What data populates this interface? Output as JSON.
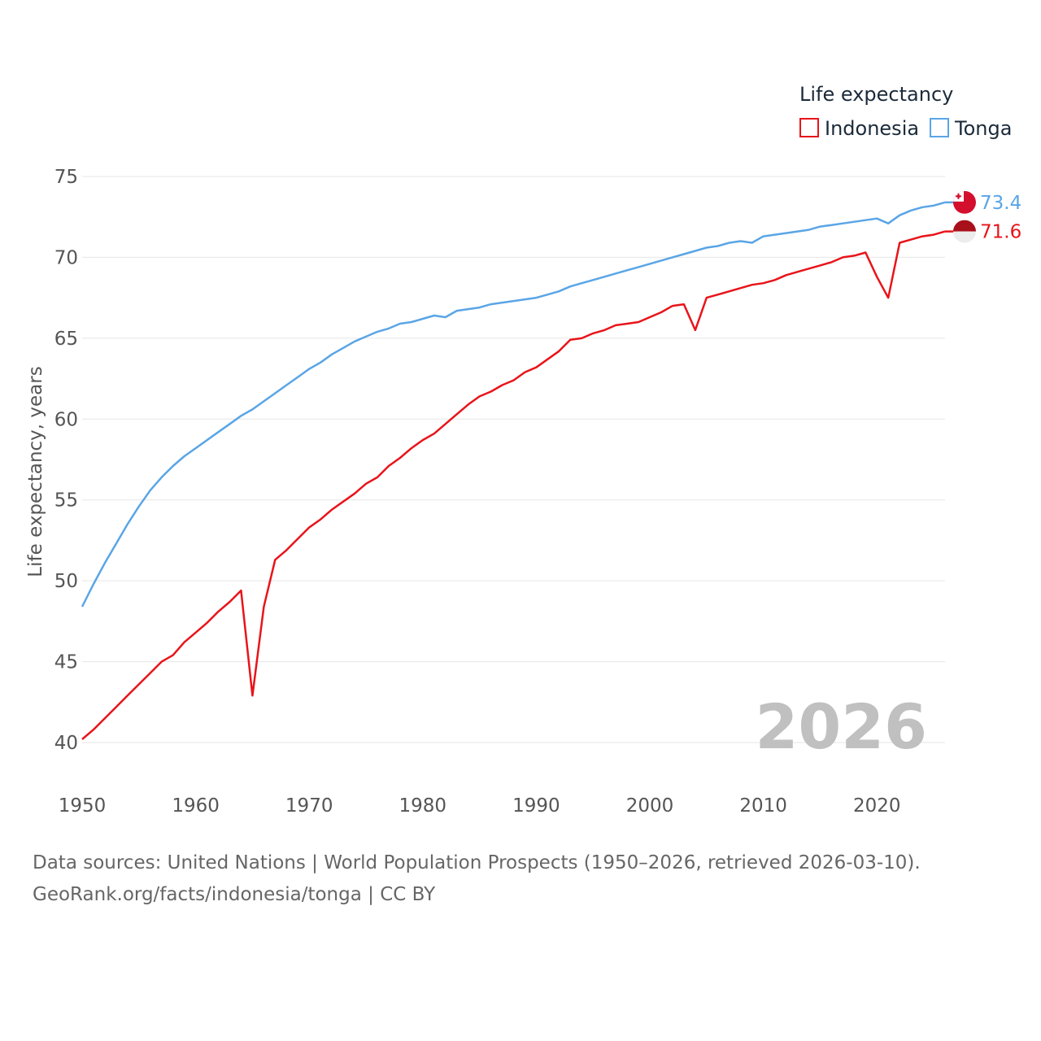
{
  "chart_data": {
    "type": "line",
    "legend_title": "Life expectancy",
    "ylabel": "Life expectancy, years",
    "xlabel": "",
    "xlim": [
      1950,
      2026
    ],
    "ylim": [
      40,
      75
    ],
    "x_ticks": [
      "1950",
      "1960",
      "1970",
      "1980",
      "1990",
      "2000",
      "2010",
      "2020"
    ],
    "y_ticks": [
      "40",
      "45",
      "50",
      "55",
      "60",
      "65",
      "70",
      "75"
    ],
    "year_label": "2026",
    "legend_placement": "top-right",
    "x": [
      1950,
      1951,
      1952,
      1953,
      1954,
      1955,
      1956,
      1957,
      1958,
      1959,
      1960,
      1961,
      1962,
      1963,
      1964,
      1965,
      1966,
      1967,
      1968,
      1969,
      1970,
      1971,
      1972,
      1973,
      1974,
      1975,
      1976,
      1977,
      1978,
      1979,
      1980,
      1981,
      1982,
      1983,
      1984,
      1985,
      1986,
      1987,
      1988,
      1989,
      1990,
      1991,
      1992,
      1993,
      1994,
      1995,
      1996,
      1997,
      1998,
      1999,
      2000,
      2001,
      2002,
      2003,
      2004,
      2005,
      2006,
      2007,
      2008,
      2009,
      2010,
      2011,
      2012,
      2013,
      2014,
      2015,
      2016,
      2017,
      2018,
      2019,
      2020,
      2021,
      2022,
      2023,
      2024,
      2025,
      2026
    ],
    "series": [
      {
        "name": "Indonesia",
        "color": "#e8141a",
        "end_label": "71.6",
        "flag_icon": "indonesia-flag-icon",
        "values": [
          40.2,
          40.8,
          41.5,
          42.2,
          42.9,
          43.6,
          44.3,
          45.0,
          45.4,
          46.2,
          46.8,
          47.4,
          48.1,
          48.7,
          49.4,
          42.9,
          48.4,
          51.3,
          51.9,
          52.6,
          53.3,
          53.8,
          54.4,
          54.9,
          55.4,
          56.0,
          56.4,
          57.1,
          57.6,
          58.2,
          58.7,
          59.1,
          59.7,
          60.3,
          60.9,
          61.4,
          61.7,
          62.1,
          62.4,
          62.9,
          63.2,
          63.7,
          64.2,
          64.9,
          65.0,
          65.3,
          65.5,
          65.8,
          65.9,
          66.0,
          66.3,
          66.6,
          67.0,
          67.1,
          65.5,
          67.5,
          67.7,
          67.9,
          68.1,
          68.3,
          68.4,
          68.6,
          68.9,
          69.1,
          69.3,
          69.5,
          69.7,
          70.0,
          70.1,
          70.3,
          68.8,
          67.5,
          70.9,
          71.1,
          71.3,
          71.4,
          71.6
        ]
      },
      {
        "name": "Tonga",
        "color": "#5aa5e6",
        "end_label": "73.4",
        "flag_icon": "tonga-flag-icon",
        "values": [
          48.4,
          49.8,
          51.1,
          52.3,
          53.5,
          54.6,
          55.6,
          56.4,
          57.1,
          57.7,
          58.2,
          58.7,
          59.2,
          59.7,
          60.2,
          60.6,
          61.1,
          61.6,
          62.1,
          62.6,
          63.1,
          63.5,
          64.0,
          64.4,
          64.8,
          65.1,
          65.4,
          65.6,
          65.9,
          66.0,
          66.2,
          66.4,
          66.3,
          66.7,
          66.8,
          66.9,
          67.1,
          67.2,
          67.3,
          67.4,
          67.5,
          67.7,
          67.9,
          68.2,
          68.4,
          68.6,
          68.8,
          69.0,
          69.2,
          69.4,
          69.6,
          69.8,
          70.0,
          70.2,
          70.4,
          70.6,
          70.7,
          70.9,
          71.0,
          70.9,
          71.3,
          71.4,
          71.5,
          71.6,
          71.7,
          71.9,
          72.0,
          72.1,
          72.2,
          72.3,
          72.4,
          72.1,
          72.6,
          72.9,
          73.1,
          73.2,
          73.4
        ]
      }
    ]
  },
  "footer": {
    "line1": "Data sources: United Nations | World Population Prospects (1950–2026, retrieved 2026-03-10).",
    "line2": "GeoRank.org/facts/indonesia/tonga | CC BY"
  }
}
